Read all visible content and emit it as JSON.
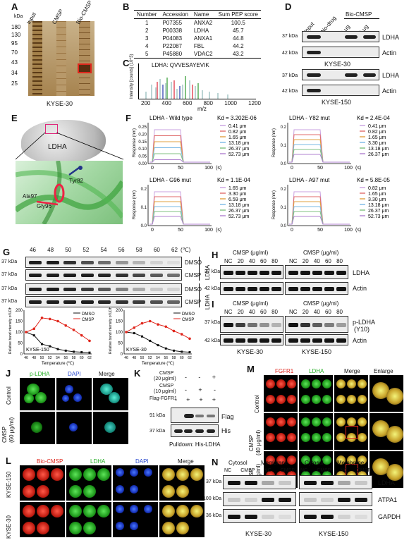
{
  "panel_letters": [
    "A",
    "B",
    "C",
    "D",
    "E",
    "F",
    "G",
    "H",
    "I",
    "J",
    "K",
    "L",
    "M",
    "N"
  ],
  "panelA": {
    "kda_label": "kDa",
    "markers": [
      "180",
      "130",
      "95",
      "70",
      "43",
      "34",
      "25"
    ],
    "lanes": [
      "Input",
      "CMSP",
      "Bio-CMSP"
    ],
    "cell_line": "KYSE-30"
  },
  "panelB": {
    "headers": [
      "Number",
      "Accession",
      "Name",
      "Sum PEP score"
    ],
    "rows": [
      [
        "1",
        "P07355",
        "ANXA2",
        "100.5"
      ],
      [
        "2",
        "P00338",
        "LDHA",
        "45.7"
      ],
      [
        "3",
        "P04083",
        "ANXA1",
        "44.8"
      ],
      [
        "4",
        "P22087",
        "FBL",
        "44.2"
      ],
      [
        "5",
        "P45880",
        "VDAC2",
        "43.2"
      ]
    ]
  },
  "panelC": {
    "title": "LDHA: QVVESAYEVIK",
    "ylabel": "Intensity [counts] (10^3)",
    "xlabel": "m/z",
    "xticks": [
      "200",
      "400",
      "600",
      "800",
      "1000",
      "1200"
    ]
  },
  "panelD": {
    "lanes": [
      "Input",
      "No-drug",
      "Bio-CMSP"
    ],
    "doses": [
      "2 μg",
      "5 μg"
    ],
    "kda": [
      "37 kDa",
      "42 kDa",
      "37 kDa",
      "42 kDa"
    ],
    "proteins": [
      "LDHA",
      "Actin",
      "LDHA",
      "Actin"
    ],
    "cell_lines": [
      "KYSE-30",
      "KYSE-150"
    ]
  },
  "panelE": {
    "protein": "LDHA",
    "residues": [
      "Tyr82",
      "Ala97",
      "Gly96"
    ]
  },
  "panelF": {
    "ylabel": "Response (nm)",
    "xlabel": "(s)",
    "xticks": [
      "0",
      "50",
      "100"
    ],
    "subplots": [
      {
        "title": "LDHA - Wild type",
        "kd": "Kd = 3.202E-06",
        "conc": [
          "0.41 μm",
          "0.82 μm",
          "1.65 μm",
          "13.18 μm",
          "26.37 μm",
          "52.73 μm"
        ],
        "yticks": [
          "0.25",
          "0.20",
          "0.15",
          "0.10",
          "0.05",
          "0.00"
        ]
      },
      {
        "title": "LDHA - Y82 mut",
        "kd": "Kd = 2.4E-04",
        "conc": [
          "0.41 μm",
          "0.82 μm",
          "1.65 μm",
          "3.30 μm",
          "13.18 μm",
          "26.37 μm"
        ],
        "yticks": [
          "0.2",
          "0.1",
          "0.0"
        ]
      },
      {
        "title": "LDHA - G96 mut",
        "kd": "Kd = 1.1E-04",
        "conc": [
          "1.65 μm",
          "3.30 μm",
          "6.59 μm",
          "13.18 μm",
          "26.37 μm",
          "52.73 μm"
        ],
        "yticks": [
          "0.2",
          "0.1",
          "0.0"
        ]
      },
      {
        "title": "LDHA - A97 mut",
        "kd": "Kd = 5.8E-05",
        "conc": [
          "0.82 μm",
          "1.65 μm",
          "3.30 μm",
          "13.18 μm",
          "26.37 μm",
          "52.73 μm"
        ],
        "yticks": [
          "0.2",
          "0.1",
          "0.0"
        ]
      }
    ]
  },
  "panelG": {
    "temps": [
      "46",
      "48",
      "50",
      "52",
      "54",
      "56",
      "58",
      "60",
      "62"
    ],
    "unit": "(℃)",
    "kda": [
      "37 kDa",
      "37 kDa",
      "37 kDa",
      "37 kDa"
    ],
    "rows": [
      "DMSO",
      "CMSP",
      "DMSO",
      "CMSP"
    ],
    "protein": "LDHA",
    "cell_lines": [
      "KYSE-150",
      "KYSE-30"
    ],
    "ylabel": "Relative band intensity of LDHA (%)",
    "xlabel": "Temperature (℃)",
    "legend": [
      "DMSO",
      "CMSP"
    ],
    "yticks": [
      "200",
      "150",
      "100",
      "50",
      "0"
    ]
  },
  "panelH": {
    "header": "CMSP (μg/ml)",
    "lanes": [
      "NC",
      "20",
      "40",
      "60",
      "80"
    ],
    "kda": [
      "37 kDa",
      "42 kDa"
    ],
    "proteins": [
      "LDHA",
      "Actin"
    ]
  },
  "panelI": {
    "header": "CMSP (μg/ml)",
    "lanes": [
      "NC",
      "20",
      "40",
      "60",
      "80"
    ],
    "kda": [
      "37 kDa",
      "42 kDa"
    ],
    "proteins": [
      "p-LDHA",
      "(Y10)",
      "Actin"
    ],
    "cell_lines": [
      "KYSE-30",
      "KYSE-150"
    ]
  },
  "panelJ": {
    "columns": [
      "p-LDHA",
      "DAPI",
      "Merge"
    ],
    "rows": [
      "Control",
      "CMSP",
      "(60 μg/ml)"
    ]
  },
  "panelK": {
    "conditions": [
      "CMSP",
      "(20 μg/ml)",
      "CMSP",
      "(10 μg/ml)",
      "Flag-FGFR1"
    ],
    "signs_row1": [
      "-",
      "-",
      "+"
    ],
    "signs_row2": [
      "-",
      "+",
      "-"
    ],
    "signs_row3": [
      "-",
      "+",
      "+",
      "+"
    ],
    "kda": [
      "91 kDa",
      "37 kDa"
    ],
    "proteins": [
      "Flag",
      "His"
    ],
    "footer": "Pulldown: His-LDHA"
  },
  "panelL": {
    "columns": [
      "Bio-CMSP",
      "LDHA",
      "DAPI",
      "Merge"
    ],
    "rows": [
      "KYSE-150",
      "KYSE-30"
    ]
  },
  "panelM": {
    "columns": [
      "FGFR1",
      "LDHA",
      "Merge",
      "Enlarge"
    ],
    "rows": [
      "Control",
      "CMSP",
      "(40 μg/ml)",
      "CMSP",
      "(60 μg/ml)"
    ]
  },
  "panelN": {
    "groups": [
      "Cytosol",
      "Membrane"
    ],
    "lanes": [
      "NC",
      "CMSP"
    ],
    "kda": [
      "37 kDa",
      "100 kDa",
      "36 kDa"
    ],
    "proteins": [
      "LDHA",
      "ATPA1",
      "GAPDH"
    ],
    "cell_lines": [
      "KYSE-30",
      "KYSE-150"
    ]
  },
  "chart_data": [
    {
      "type": "line",
      "title": "",
      "annotation": "KYSE-150",
      "xlabel": "Temperature (℃)",
      "ylabel": "Relative band intensity of LDHA (%)",
      "x": [
        46,
        48,
        50,
        52,
        54,
        56,
        58,
        60,
        62
      ],
      "ylim": [
        0,
        200
      ],
      "series": [
        {
          "name": "DMSO",
          "values": [
            100,
            85,
            45,
            35,
            22,
            15,
            10,
            8,
            6
          ]
        },
        {
          "name": "CMSP",
          "values": [
            100,
            115,
            165,
            160,
            150,
            130,
            110,
            85,
            60
          ]
        }
      ]
    },
    {
      "type": "line",
      "title": "",
      "annotation": "KYSE-30",
      "xlabel": "Temperature (℃)",
      "ylabel": "Relative band intensity of LDHA (%)",
      "x": [
        46,
        48,
        50,
        52,
        54,
        56,
        58,
        60,
        62
      ],
      "ylim": [
        0,
        200
      ],
      "series": [
        {
          "name": "DMSO",
          "values": [
            100,
            95,
            80,
            60,
            40,
            25,
            15,
            10,
            8
          ]
        },
        {
          "name": "CMSP",
          "values": [
            100,
            120,
            140,
            150,
            135,
            125,
            105,
            90,
            70
          ]
        }
      ]
    }
  ],
  "colors": {
    "dmso": "#111111",
    "cmsp": "#e0261c"
  }
}
